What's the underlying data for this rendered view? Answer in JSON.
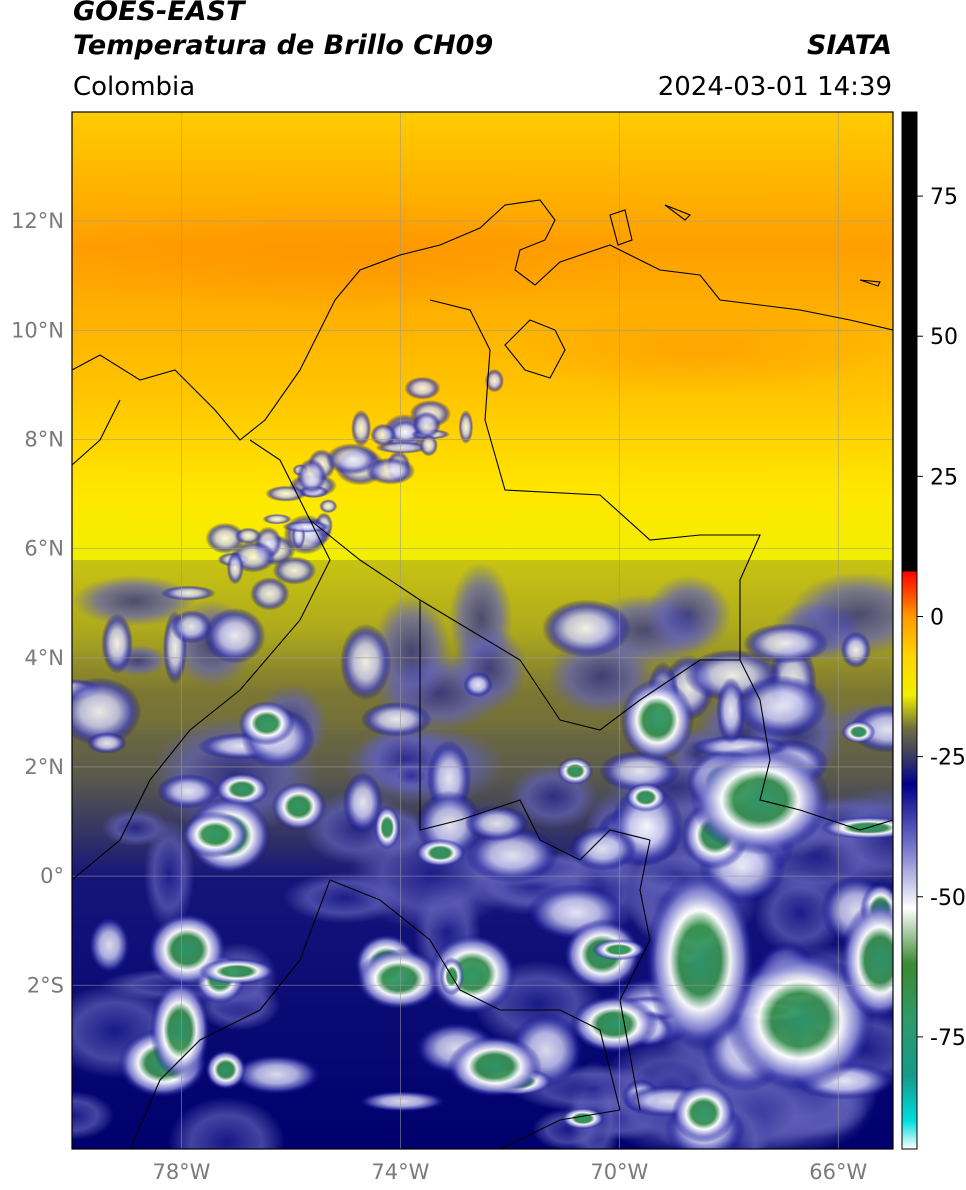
{
  "header": {
    "title_line1": "GOES-EAST",
    "title_line2": "Temperatura de Brillo CH09",
    "subtitle": "Colombia",
    "source": "SIATA",
    "timestamp": "2024-03-01 14:39"
  },
  "map": {
    "lon_range": [
      -80,
      -65
    ],
    "lat_range": [
      -5,
      14
    ],
    "lat_ticks": [
      {
        "value": 12,
        "label": "12°N"
      },
      {
        "value": 10,
        "label": "10°N"
      },
      {
        "value": 8,
        "label": "8°N"
      },
      {
        "value": 6,
        "label": "6°N"
      },
      {
        "value": 4,
        "label": "4°N"
      },
      {
        "value": 2,
        "label": "2°N"
      },
      {
        "value": 0,
        "label": "0°"
      },
      {
        "value": -2,
        "label": "2°S"
      }
    ],
    "lon_ticks": [
      {
        "value": -78,
        "label": "78°W"
      },
      {
        "value": -74,
        "label": "74°W"
      },
      {
        "value": -70,
        "label": "70°W"
      },
      {
        "value": -66,
        "label": "66°W"
      }
    ],
    "grid": true
  },
  "colorbar": {
    "range": [
      -95,
      90
    ],
    "ticks": [
      {
        "value": 75,
        "label": "75"
      },
      {
        "value": 50,
        "label": "50"
      },
      {
        "value": 25,
        "label": "25"
      },
      {
        "value": 0,
        "label": "0"
      },
      {
        "value": -25,
        "label": "-25"
      },
      {
        "value": -50,
        "label": "-50"
      },
      {
        "value": -75,
        "label": "-75"
      }
    ],
    "stops": [
      {
        "value": -95,
        "color": "#ffffff"
      },
      {
        "value": -90,
        "color": "#00dede"
      },
      {
        "value": -82,
        "color": "#159a8c"
      },
      {
        "value": -72,
        "color": "#2f9a6a"
      },
      {
        "value": -62,
        "color": "#3a8a32"
      },
      {
        "value": -52,
        "color": "#ffffff"
      },
      {
        "value": -42,
        "color": "#8080d0"
      },
      {
        "value": -30,
        "color": "#00008a"
      },
      {
        "value": -25,
        "color": "#3a3a66"
      },
      {
        "value": -20,
        "color": "#6e6e40"
      },
      {
        "value": -14,
        "color": "#f0f000"
      },
      {
        "value": -7,
        "color": "#ffd400"
      },
      {
        "value": 0,
        "color": "#ff9a00"
      },
      {
        "value": 8,
        "color": "#ff0000"
      },
      {
        "value": 8.01,
        "color": "#000000"
      },
      {
        "value": 90,
        "color": "#000000"
      }
    ]
  }
}
